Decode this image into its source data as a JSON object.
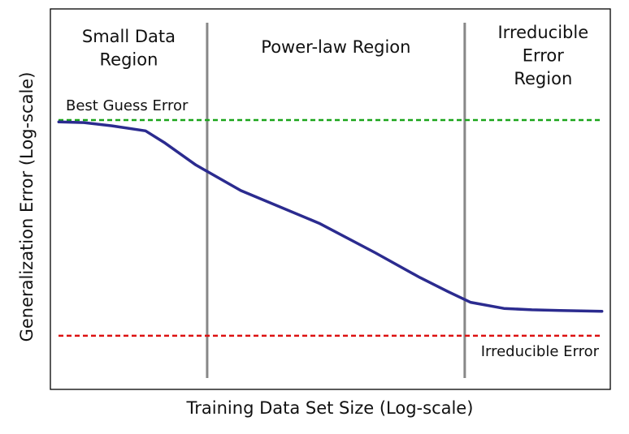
{
  "chart_data": {
    "type": "line",
    "title": "",
    "xlabel": "Training Data Set Size (Log-scale)",
    "ylabel": "Generalization Error (Log-scale)",
    "xscale": "log",
    "yscale": "log",
    "ticks_shown": false,
    "grid": false,
    "legend": "none",
    "xlim": [
      0,
      100
    ],
    "ylim": [
      0,
      100
    ],
    "series": [
      {
        "color": "#2b2b8f",
        "x": [
          1.5,
          6,
          11,
          17,
          20.5,
          26,
          34,
          48,
          58,
          66,
          71,
          75,
          81,
          86,
          91,
          98.5
        ],
        "y": [
          71.5,
          71.3,
          70.4,
          69,
          65.6,
          59.5,
          52.4,
          43.3,
          35.1,
          28.2,
          24.3,
          21.3,
          19.6,
          19.2,
          19,
          18.8
        ]
      }
    ],
    "reference_lines": [
      {
        "label": "Best Guess Error",
        "y": 72,
        "color": "#1aa51a",
        "style": "dashed"
      },
      {
        "label": "Irreducible Error",
        "y": 12,
        "color": "#dd1111",
        "style": "dashed"
      }
    ],
    "region_boundaries": {
      "x": [
        28,
        74
      ],
      "color": "#888888"
    },
    "regions": [
      {
        "lines": [
          "Small Data",
          "Region"
        ],
        "x": 14
      },
      {
        "lines": [
          "Power-law Region"
        ],
        "x": 51
      },
      {
        "lines": [
          "Irreducible",
          "Error",
          "Region"
        ],
        "x": 88
      }
    ]
  }
}
